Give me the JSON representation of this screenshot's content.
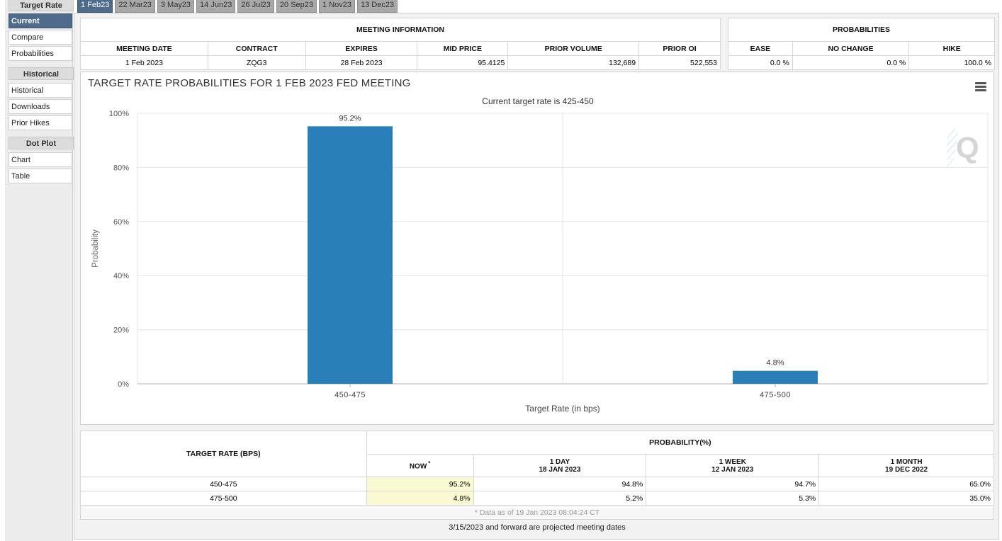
{
  "sidebar": {
    "target_rate_label": "Target Rate",
    "current_label": "Current",
    "compare_label": "Compare",
    "probabilities_label": "Probabilities",
    "historical_section": "Historical",
    "historical_label": "Historical",
    "downloads_label": "Downloads",
    "prior_hikes_label": "Prior Hikes",
    "dot_plot_section": "Dot Plot",
    "chart_label": "Chart",
    "table_label": "Table"
  },
  "tabs": [
    "1 Feb23",
    "22 Mar23",
    "3 May23",
    "14 Jun23",
    "26 Jul23",
    "20 Sep23",
    "1 Nov23",
    "13 Dec23"
  ],
  "meeting_info": {
    "section_title": "MEETING INFORMATION",
    "headers": {
      "meeting_date": "MEETING DATE",
      "contract": "CONTRACT",
      "expires": "EXPIRES",
      "mid_price": "MID PRICE",
      "prior_volume": "PRIOR VOLUME",
      "prior_oi": "PRIOR OI"
    },
    "values": {
      "meeting_date": "1 Feb 2023",
      "contract": "ZQG3",
      "expires": "28 Feb 2023",
      "mid_price": "95.4125",
      "prior_volume": "132,689",
      "prior_oi": "522,553"
    }
  },
  "probabilities": {
    "section_title": "PROBABILITIES",
    "headers": {
      "ease": "EASE",
      "no_change": "NO CHANGE",
      "hike": "HIKE"
    },
    "values": {
      "ease": "0.0 %",
      "no_change": "0.0 %",
      "hike": "100.0 %"
    }
  },
  "chart": {
    "title": "TARGET RATE PROBABILITIES FOR 1 FEB 2023 FED MEETING",
    "subtitle": "Current target rate is 425-450"
  },
  "chart_data": {
    "type": "bar",
    "title": "TARGET RATE PROBABILITIES FOR 1 FEB 2023 FED MEETING",
    "subtitle": "Current target rate is 425-450",
    "categories": [
      "450-475",
      "475-500"
    ],
    "values": [
      95.2,
      4.8
    ],
    "data_labels": [
      "95.2%",
      "4.8%"
    ],
    "xlabel": "Target Rate (in bps)",
    "ylabel": "Probability",
    "ylim": [
      0,
      100
    ],
    "y_ticks": [
      "0%",
      "20%",
      "40%",
      "60%",
      "80%",
      "100%"
    ],
    "bar_color": "#2980b9",
    "grid": true
  },
  "prob_table": {
    "target_rate_header": "TARGET RATE (BPS)",
    "probability_header": "PROBABILITY(%)",
    "now_header": "NOW",
    "now_marker": "*",
    "cols": [
      {
        "label": "1 DAY",
        "date": "18 JAN 2023"
      },
      {
        "label": "1 WEEK",
        "date": "12 JAN 2023"
      },
      {
        "label": "1 MONTH",
        "date": "19 DEC 2022"
      }
    ],
    "rows": [
      {
        "rate": "450-475",
        "now": "95.2%",
        "day": "94.8%",
        "week": "94.7%",
        "month": "65.0%"
      },
      {
        "rate": "475-500",
        "now": "4.8%",
        "day": "5.2%",
        "week": "5.3%",
        "month": "35.0%"
      }
    ],
    "data_note": "* Data as of 19 Jan 2023 08:04:24 CT",
    "highlight_color": "#fafad2"
  },
  "footer_note": "3/15/2023 and forward are projected meeting dates"
}
